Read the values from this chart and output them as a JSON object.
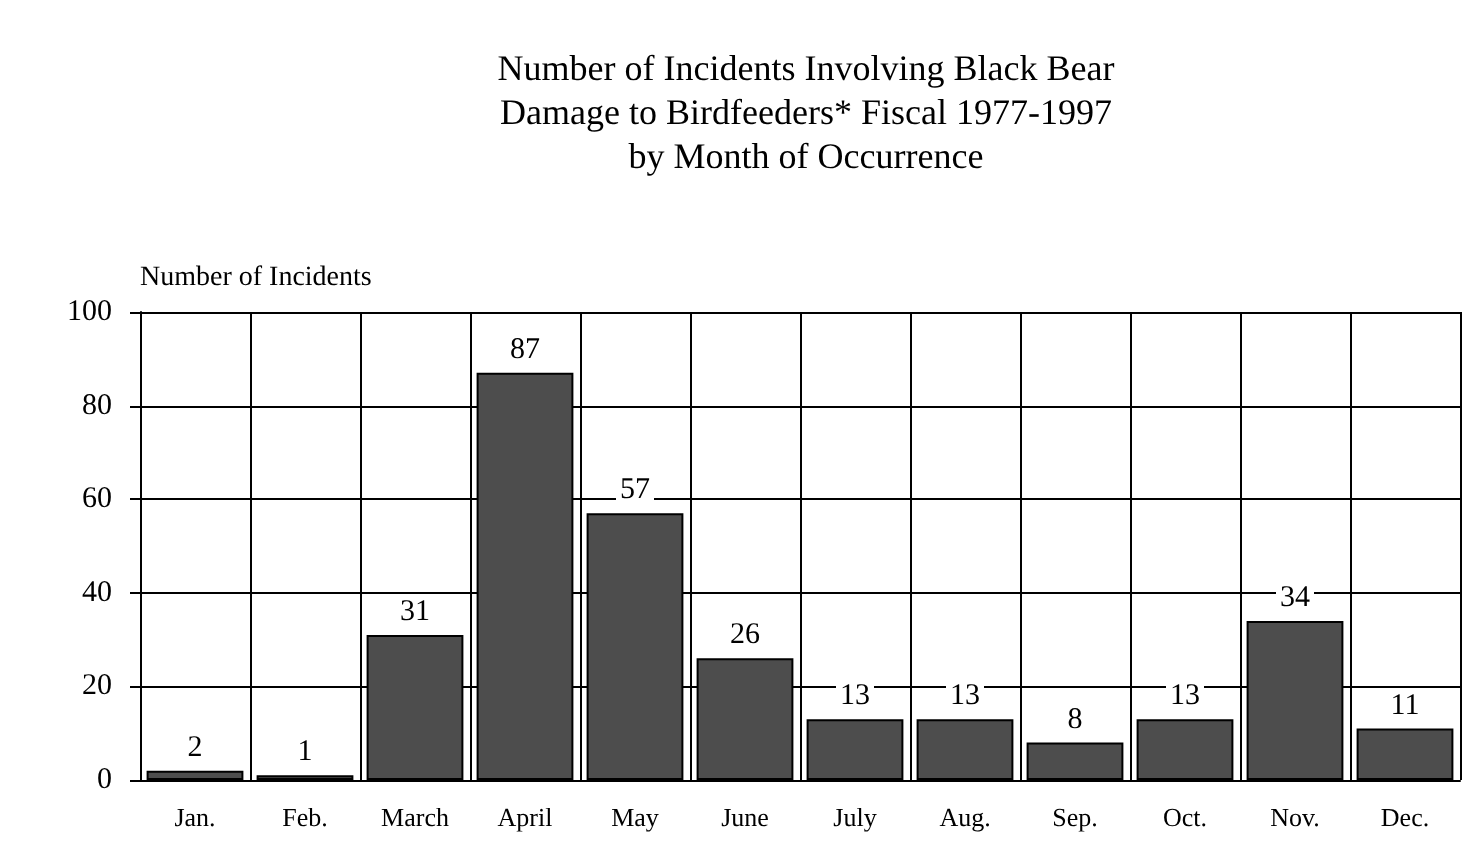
{
  "chart_data": {
    "type": "bar",
    "title": "Number of Incidents Involving Black Bear\nDamage to Birdfeeders* Fiscal 1977-1997\nby Month of Occurrence",
    "ylabel": "Number of Incidents",
    "categories": [
      "Jan.",
      "Feb.",
      "March",
      "April",
      "May",
      "June",
      "July",
      "Aug.",
      "Sep.",
      "Oct.",
      "Nov.",
      "Dec."
    ],
    "values": [
      2,
      1,
      31,
      87,
      57,
      26,
      13,
      13,
      8,
      13,
      34,
      11
    ],
    "color": "#4d4d4d",
    "ylim": [
      0,
      100
    ],
    "yticks": [
      0,
      20,
      40,
      60,
      80,
      100
    ],
    "grid": true,
    "data_labels": true
  }
}
